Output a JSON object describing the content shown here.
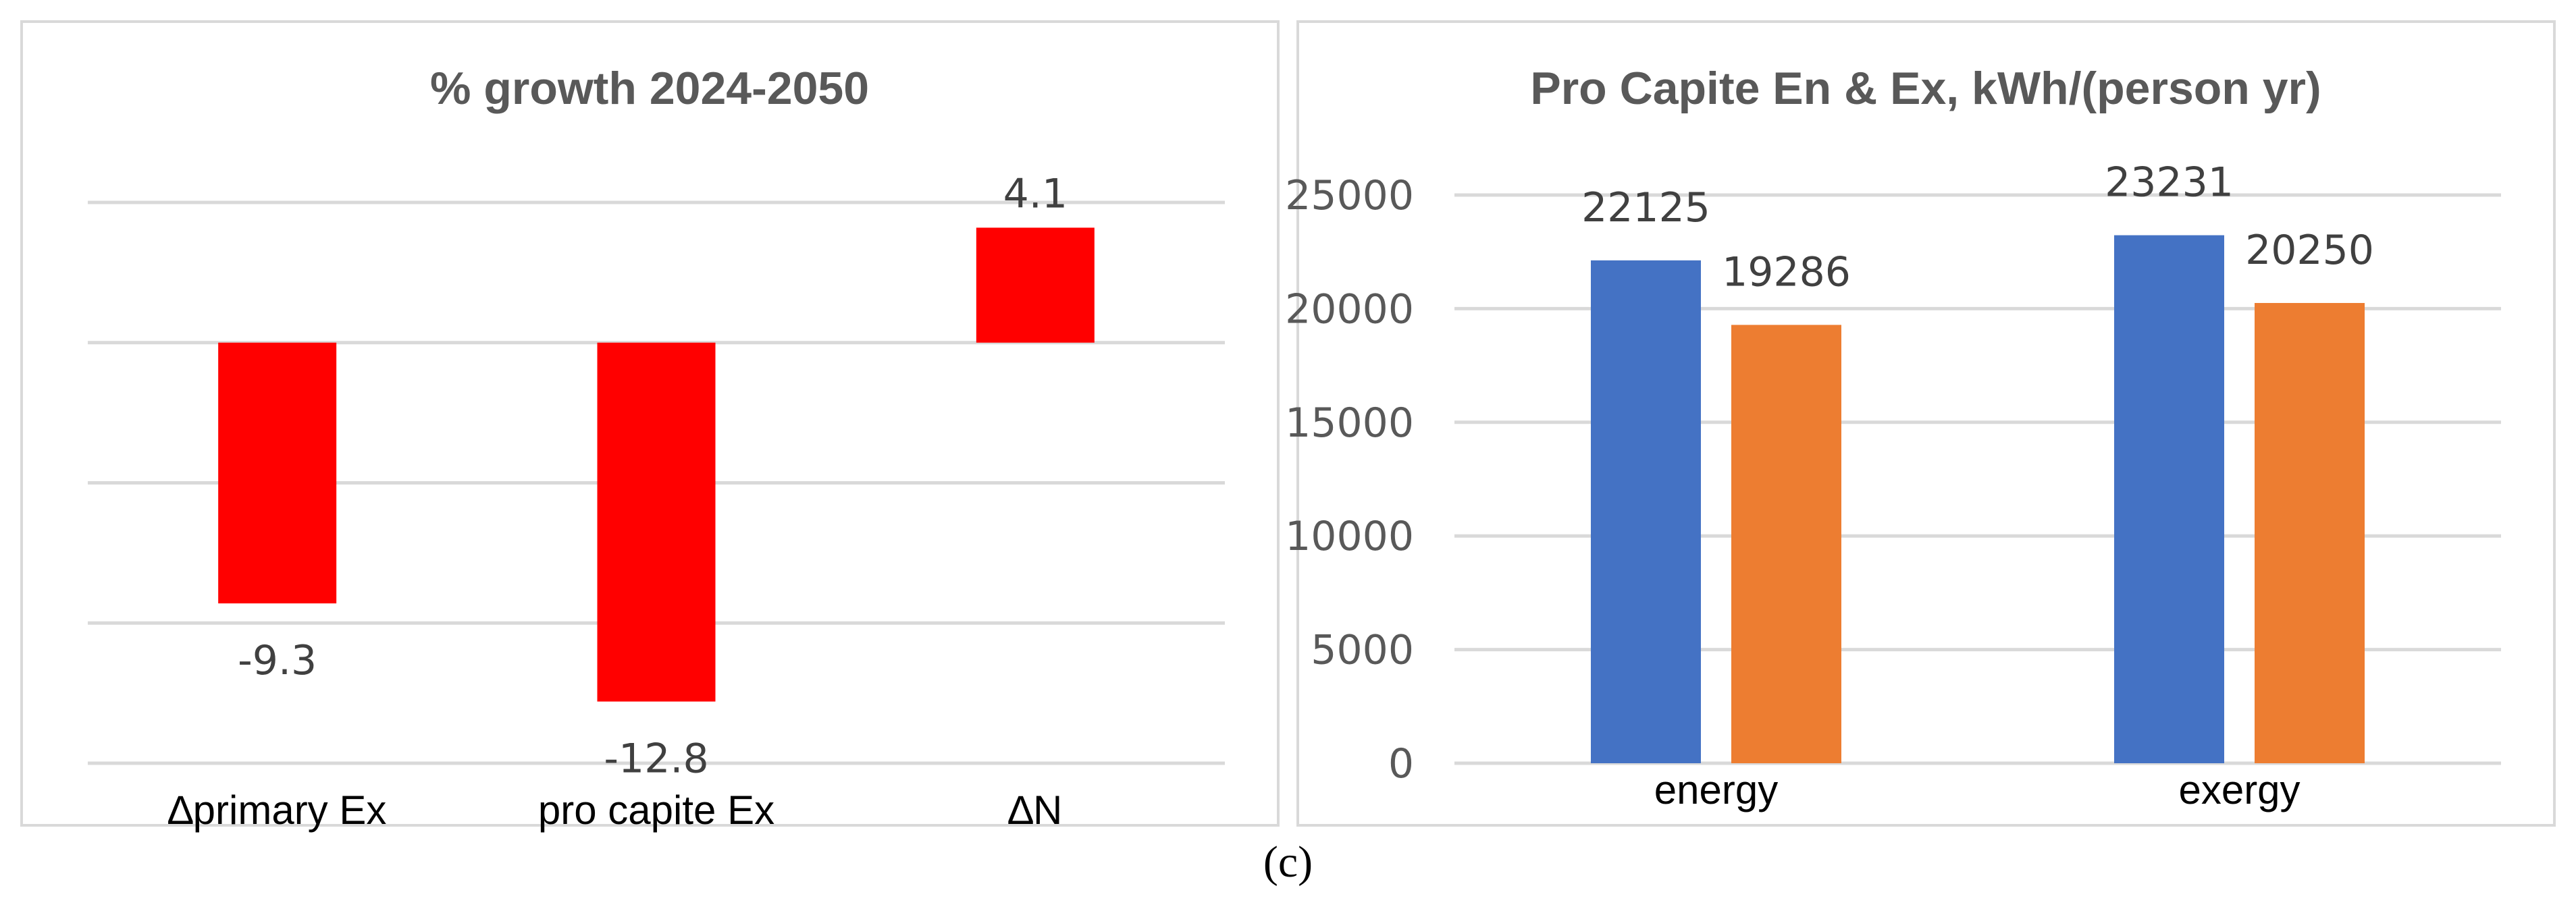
{
  "caption": "(c)",
  "chart_data": [
    {
      "type": "bar",
      "title": "% growth 2024-2050",
      "categories": [
        "∆primary Ex",
        "pro capite Ex",
        "∆N"
      ],
      "values": [
        -9.3,
        -12.8,
        4.1
      ],
      "data_labels": [
        "-9.3",
        "-12.8",
        "4.1"
      ],
      "ylim": [
        -15,
        5
      ],
      "grid": true,
      "y_tick_labels_shown": false,
      "colors": {
        "bar": "#ff0000",
        "grid": "#d9d9d9"
      }
    },
    {
      "type": "bar",
      "title": "Pro Capite En & Ex, kWh/(person yr)",
      "categories": [
        "energy",
        "exergy"
      ],
      "series": [
        {
          "values": [
            22125,
            23231
          ],
          "data_labels": [
            "22125",
            "23231"
          ],
          "color": "#4472c4"
        },
        {
          "values": [
            19286,
            20250
          ],
          "data_labels": [
            "19286",
            "20250"
          ],
          "color": "#ed7d31"
        }
      ],
      "ylim": [
        0,
        25000
      ],
      "y_ticks": [
        "0",
        "5000",
        "10000",
        "15000",
        "20000",
        "25000"
      ],
      "grid": true,
      "colors": {
        "grid": "#d9d9d9"
      }
    }
  ]
}
